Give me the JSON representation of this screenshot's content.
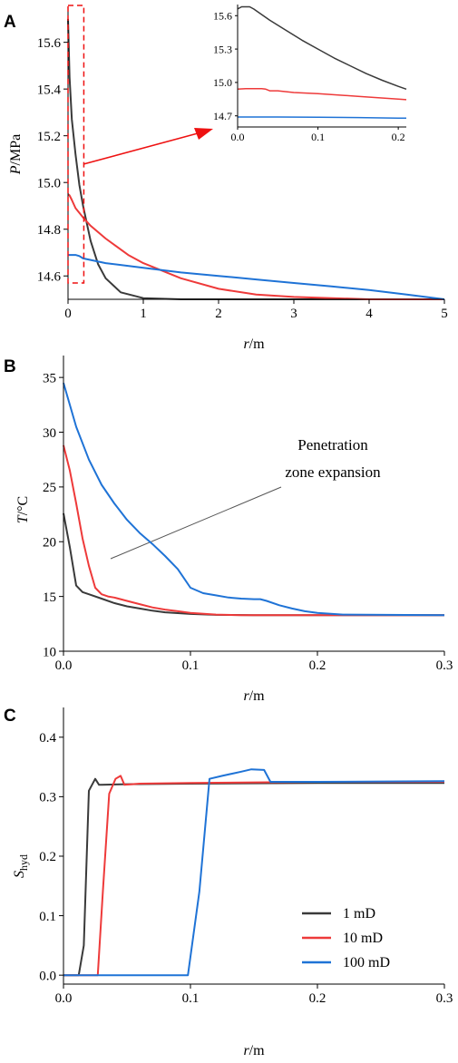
{
  "colors": {
    "1 mD": "#3a3a3a",
    "10 mD": "#ee3a3a",
    "100 mD": "#1f73d6",
    "arrow": "#ee1111",
    "annotation_line": "#555555"
  },
  "legend": {
    "items": [
      "1 mD",
      "10 mD",
      "100 mD"
    ],
    "placement": "right, lower half of panel C"
  },
  "chart_data": [
    {
      "panel": "A",
      "type": "line",
      "xlabel": "r/m",
      "ylabel": "P/MPa",
      "xlim": [
        0,
        5
      ],
      "ylim": [
        14.5,
        15.75
      ],
      "xticks": [
        "0",
        "1",
        "2",
        "3",
        "4",
        "5"
      ],
      "yticks": [
        "14.6",
        "14.8",
        "15.0",
        "15.2",
        "15.4",
        "15.6"
      ],
      "series": [
        {
          "name": "1 mD",
          "x": [
            0,
            0.02,
            0.05,
            0.1,
            0.15,
            0.2,
            0.3,
            0.4,
            0.5,
            0.7,
            1.0,
            1.5,
            2,
            3,
            4,
            5
          ],
          "y": [
            15.7,
            15.45,
            15.27,
            15.12,
            14.99,
            14.9,
            14.75,
            14.65,
            14.59,
            14.53,
            14.505,
            14.5,
            14.5,
            14.5,
            14.5,
            14.5
          ]
        },
        {
          "name": "10 mD",
          "x": [
            0,
            0.02,
            0.05,
            0.1,
            0.2,
            0.3,
            0.5,
            0.8,
            1.0,
            1.5,
            2.0,
            2.5,
            3.0,
            4.0,
            5.0
          ],
          "y": [
            14.95,
            14.945,
            14.925,
            14.89,
            14.85,
            14.815,
            14.76,
            14.69,
            14.655,
            14.59,
            14.545,
            14.52,
            14.51,
            14.5,
            14.5
          ]
        },
        {
          "name": "100 mD",
          "x": [
            0,
            0.05,
            0.1,
            0.15,
            0.2,
            0.5,
            1.0,
            1.5,
            2.0,
            2.5,
            3.0,
            3.5,
            4.0,
            4.5,
            5.0
          ],
          "y": [
            14.69,
            14.69,
            14.69,
            14.685,
            14.675,
            14.655,
            14.635,
            14.615,
            14.6,
            14.585,
            14.57,
            14.555,
            14.54,
            14.52,
            14.5
          ]
        }
      ],
      "annotations": [
        "dashed red box marking r = 0–0.2 m",
        "red arrow pointing to inset"
      ],
      "inset": {
        "xlim": [
          0,
          0.21
        ],
        "ylim": [
          14.6,
          15.7
        ],
        "xticks": [
          "0.0",
          "0.1",
          "0.2"
        ],
        "yticks": [
          "14.7",
          "15.0",
          "15.3",
          "15.6"
        ],
        "series": [
          {
            "name": "1 mD",
            "x": [
              0,
              0.005,
              0.01,
              0.015,
              0.02,
              0.04,
              0.06,
              0.08,
              0.1,
              0.12,
              0.14,
              0.16,
              0.18,
              0.2,
              0.21
            ],
            "y": [
              15.66,
              15.68,
              15.68,
              15.68,
              15.66,
              15.56,
              15.47,
              15.38,
              15.3,
              15.22,
              15.15,
              15.08,
              15.02,
              14.965,
              14.94
            ]
          },
          {
            "name": "10 mD",
            "x": [
              0,
              0.01,
              0.02,
              0.03,
              0.035,
              0.04,
              0.05,
              0.07,
              0.1,
              0.15,
              0.2,
              0.21
            ],
            "y": [
              14.94,
              14.945,
              14.945,
              14.945,
              14.94,
              14.925,
              14.925,
              14.91,
              14.9,
              14.875,
              14.85,
              14.845
            ]
          },
          {
            "name": "100 mD",
            "x": [
              0,
              0.05,
              0.1,
              0.15,
              0.2,
              0.21
            ],
            "y": [
              14.69,
              14.69,
              14.688,
              14.685,
              14.68,
              14.68
            ]
          }
        ]
      }
    },
    {
      "panel": "B",
      "type": "line",
      "xlabel": "r/m",
      "ylabel": "T/°C",
      "xlim": [
        0,
        0.3
      ],
      "ylim": [
        10,
        37
      ],
      "xticks": [
        "0.0",
        "0.1",
        "0.2",
        "0.3"
      ],
      "yticks": [
        "10",
        "15",
        "20",
        "25",
        "30",
        "35"
      ],
      "annotation": "Penetration zone expansion",
      "series": [
        {
          "name": "1 mD",
          "x": [
            0,
            0.005,
            0.01,
            0.015,
            0.02,
            0.03,
            0.04,
            0.05,
            0.06,
            0.07,
            0.08,
            0.1,
            0.12,
            0.15,
            0.3
          ],
          "y": [
            22.6,
            19.5,
            16.0,
            15.4,
            15.2,
            14.8,
            14.4,
            14.1,
            13.9,
            13.7,
            13.55,
            13.4,
            13.32,
            13.3,
            13.3
          ]
        },
        {
          "name": "10 mD",
          "x": [
            0,
            0.005,
            0.01,
            0.015,
            0.02,
            0.025,
            0.03,
            0.035,
            0.04,
            0.05,
            0.06,
            0.07,
            0.08,
            0.09,
            0.1,
            0.12,
            0.14,
            0.3
          ],
          "y": [
            28.8,
            26.5,
            23.5,
            20.3,
            17.8,
            15.8,
            15.2,
            15.0,
            14.9,
            14.6,
            14.3,
            14.0,
            13.8,
            13.65,
            13.5,
            13.35,
            13.3,
            13.3
          ]
        },
        {
          "name": "100 mD",
          "x": [
            0,
            0.01,
            0.02,
            0.03,
            0.04,
            0.05,
            0.06,
            0.07,
            0.08,
            0.09,
            0.1,
            0.11,
            0.12,
            0.13,
            0.14,
            0.15,
            0.155,
            0.16,
            0.17,
            0.18,
            0.19,
            0.2,
            0.22,
            0.3
          ],
          "y": [
            34.5,
            30.5,
            27.5,
            25.2,
            23.5,
            22.0,
            20.8,
            19.8,
            18.7,
            17.5,
            15.8,
            15.3,
            15.1,
            14.9,
            14.8,
            14.75,
            14.75,
            14.6,
            14.2,
            13.9,
            13.65,
            13.5,
            13.35,
            13.3
          ]
        }
      ]
    },
    {
      "panel": "C",
      "type": "line",
      "xlabel": "r/m",
      "ylabel": "Shyd",
      "xlim": [
        0,
        0.3
      ],
      "ylim": [
        -0.015,
        0.45
      ],
      "xticks": [
        "0.0",
        "0.1",
        "0.2",
        "0.3"
      ],
      "yticks": [
        "0.0",
        "0.1",
        "0.2",
        "0.3",
        "0.4"
      ],
      "series": [
        {
          "name": "1 mD",
          "x": [
            0,
            0.012,
            0.016,
            0.02,
            0.025,
            0.028,
            0.03,
            0.05,
            0.1,
            0.2,
            0.3
          ],
          "y": [
            0,
            0,
            0.05,
            0.31,
            0.33,
            0.32,
            0.32,
            0.321,
            0.322,
            0.323,
            0.323
          ]
        },
        {
          "name": "10 mD",
          "x": [
            0,
            0.027,
            0.031,
            0.036,
            0.041,
            0.045,
            0.048,
            0.06,
            0.1,
            0.2,
            0.3
          ],
          "y": [
            0,
            0,
            0.14,
            0.305,
            0.33,
            0.335,
            0.32,
            0.322,
            0.323,
            0.325,
            0.325
          ]
        },
        {
          "name": "100 mD",
          "x": [
            0,
            0.098,
            0.107,
            0.115,
            0.125,
            0.14,
            0.148,
            0.158,
            0.163,
            0.17,
            0.2,
            0.3
          ],
          "y": [
            0,
            0,
            0.14,
            0.33,
            0.335,
            0.342,
            0.346,
            0.345,
            0.325,
            0.325,
            0.325,
            0.326
          ]
        }
      ]
    }
  ]
}
